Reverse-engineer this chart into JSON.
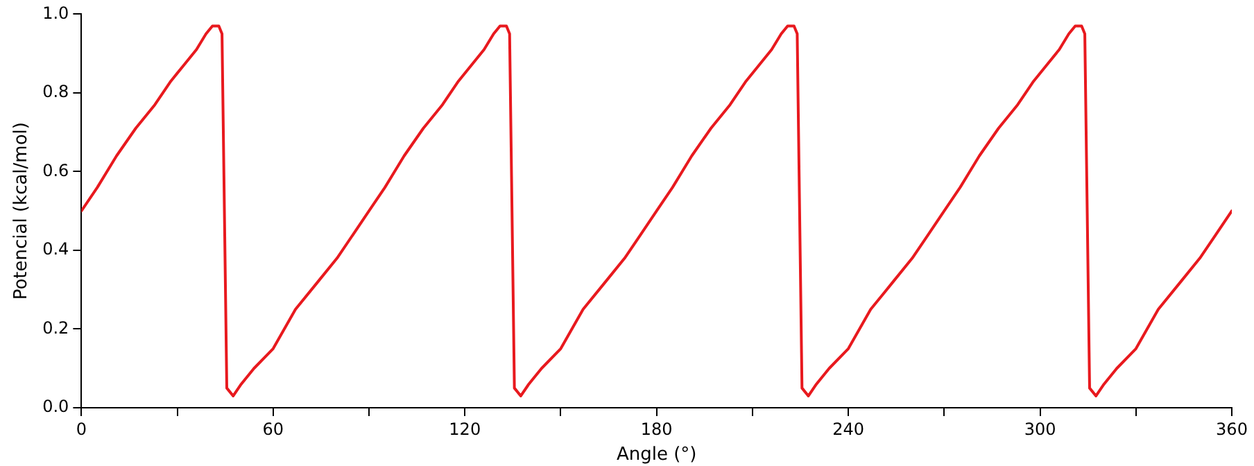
{
  "chart_data": {
    "type": "line",
    "xlabel": "Angle (°)",
    "ylabel": "Potencial (kcal/mol)",
    "x": [
      0,
      5,
      11,
      17,
      23,
      28,
      32,
      36,
      39,
      41,
      43,
      44,
      45.5,
      47.5,
      50,
      54,
      60,
      67,
      74,
      80,
      85,
      90,
      95,
      101,
      107,
      113,
      118,
      122,
      126,
      129,
      131,
      133,
      134,
      135.5,
      137.5,
      140,
      144,
      150,
      157,
      164,
      170,
      175,
      180,
      185,
      191,
      197,
      203,
      208,
      212,
      216,
      219,
      221,
      223,
      224,
      225.5,
      227.5,
      230,
      234,
      240,
      247,
      254,
      260,
      265,
      270,
      275,
      281,
      287,
      293,
      298,
      302,
      306,
      309,
      311,
      313,
      314,
      315.5,
      317.5,
      320,
      324,
      330,
      337,
      344,
      350,
      355,
      360
    ],
    "series": [
      {
        "color": "#e8191e",
        "values": [
          0.5,
          0.56,
          0.64,
          0.71,
          0.77,
          0.83,
          0.87,
          0.91,
          0.95,
          0.97,
          0.97,
          0.95,
          0.05,
          0.03,
          0.06,
          0.1,
          0.15,
          0.25,
          0.32,
          0.38,
          0.44,
          0.5,
          0.56,
          0.64,
          0.71,
          0.77,
          0.83,
          0.87,
          0.91,
          0.95,
          0.97,
          0.97,
          0.95,
          0.05,
          0.03,
          0.06,
          0.1,
          0.15,
          0.25,
          0.32,
          0.38,
          0.44,
          0.5,
          0.56,
          0.64,
          0.71,
          0.77,
          0.83,
          0.87,
          0.91,
          0.95,
          0.97,
          0.97,
          0.95,
          0.05,
          0.03,
          0.06,
          0.1,
          0.15,
          0.25,
          0.32,
          0.38,
          0.44,
          0.5,
          0.56,
          0.64,
          0.71,
          0.77,
          0.83,
          0.87,
          0.91,
          0.95,
          0.97,
          0.97,
          0.95,
          0.05,
          0.03,
          0.06,
          0.1,
          0.15,
          0.25,
          0.32,
          0.38,
          0.44,
          0.5
        ]
      }
    ],
    "xlim": [
      0,
      360
    ],
    "ylim": [
      0,
      1
    ],
    "xticks": [
      0,
      {
        "value": 30,
        "label": null
      },
      60,
      {
        "value": 90,
        "label": null
      },
      120,
      {
        "value": 150,
        "label": null
      },
      180,
      {
        "value": 210,
        "label": null
      },
      240,
      {
        "value": 270,
        "label": null
      },
      300,
      {
        "value": 330,
        "label": null
      },
      360
    ],
    "yticks": [
      {
        "value": 0,
        "label": "0.0"
      },
      {
        "value": 0.2,
        "label": "0.2"
      },
      {
        "value": 0.4,
        "label": "0.4"
      },
      {
        "value": 0.6,
        "label": "0.6"
      },
      {
        "value": 0.8,
        "label": "0.8"
      },
      {
        "value": 1,
        "label": "1.0"
      }
    ],
    "grid": false,
    "legend": false,
    "marker": "none",
    "line_style": "solid"
  }
}
